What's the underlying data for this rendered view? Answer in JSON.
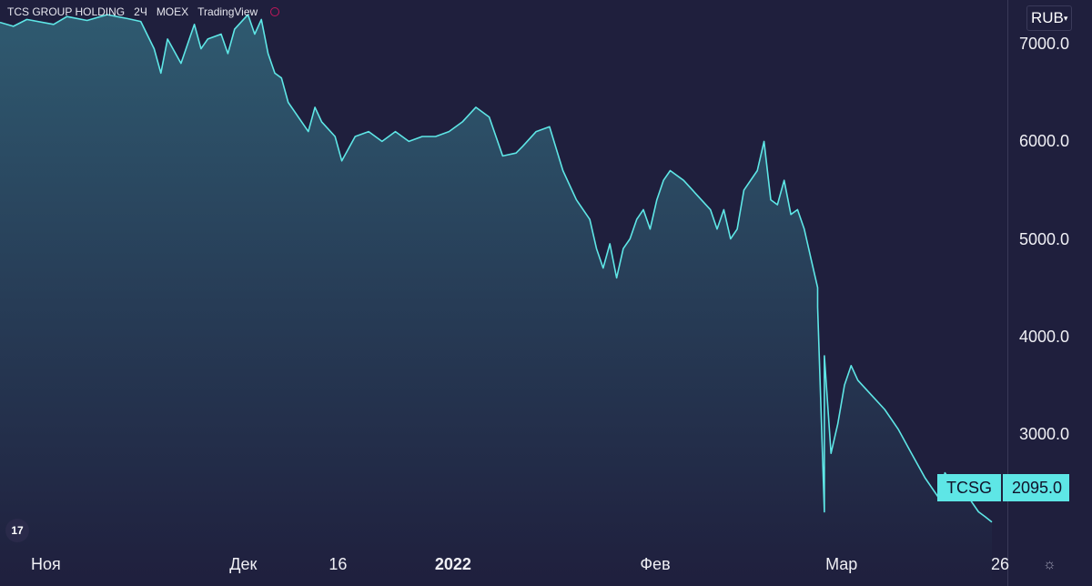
{
  "header": {
    "symbol": "TCS GROUP HOLDING",
    "interval": "2Ч",
    "exchange": "MOEX",
    "provider": "TradingView"
  },
  "currency": "RUB",
  "price_tag": {
    "symbol": "TCSG",
    "value": "2095.0"
  },
  "colors": {
    "line": "#5ee6e6",
    "background": "#1f1f3d",
    "fill_top": "#2f5a70"
  },
  "icons": {
    "logo": "tradingview-logo-icon",
    "settings": "settings-icon"
  },
  "chart_data": {
    "type": "area",
    "title": "",
    "xlabel": "",
    "ylabel": "",
    "ylim": [
      1850,
      7450
    ],
    "xlim": [
      "2021-11-01",
      "2022-03-26"
    ],
    "grid": false,
    "legend": "none",
    "y_ticks": [
      "7000.0",
      "6000.0",
      "5000.0",
      "4000.0",
      "3000.0"
    ],
    "y_tick_values": [
      7000,
      6000,
      5000,
      4000,
      3000
    ],
    "x_ticks": [
      {
        "label": "Ноя",
        "date": "2021-11-01",
        "bold": false
      },
      {
        "label": "Дек",
        "date": "2021-12-01",
        "bold": false
      },
      {
        "label": "16",
        "date": "2021-12-16",
        "bold": false
      },
      {
        "label": "2022",
        "date": "2022-01-01",
        "bold": true
      },
      {
        "label": "Фев",
        "date": "2022-02-01",
        "bold": false
      },
      {
        "label": "Мар",
        "date": "2022-03-01",
        "bold": false
      },
      {
        "label": "26",
        "date": "2022-03-26",
        "bold": false
      }
    ],
    "series": [
      {
        "x": [
          "2021-10-25",
          "2021-10-27",
          "2021-10-29",
          "2021-11-02",
          "2021-11-04",
          "2021-11-07",
          "2021-11-10",
          "2021-11-13",
          "2021-11-15",
          "2021-11-17",
          "2021-11-18",
          "2021-11-19",
          "2021-11-21",
          "2021-11-23",
          "2021-11-24",
          "2021-11-25",
          "2021-11-27",
          "2021-11-28",
          "2021-11-29",
          "2021-12-01",
          "2021-12-02",
          "2021-12-03",
          "2021-12-04",
          "2021-12-05",
          "2021-12-06",
          "2021-12-07",
          "2021-12-08",
          "2021-12-10",
          "2021-12-11",
          "2021-12-12",
          "2021-12-14",
          "2021-12-15",
          "2021-12-17",
          "2021-12-19",
          "2021-12-21",
          "2021-12-23",
          "2021-12-25",
          "2021-12-27",
          "2021-12-29",
          "2021-12-31",
          "2022-01-02",
          "2022-01-04",
          "2022-01-06",
          "2022-01-08",
          "2022-01-10",
          "2022-01-11",
          "2022-01-13",
          "2022-01-15",
          "2022-01-17",
          "2022-01-19",
          "2022-01-21",
          "2022-01-22",
          "2022-01-23",
          "2022-01-24",
          "2022-01-25",
          "2022-01-26",
          "2022-01-27",
          "2022-01-28",
          "2022-01-29",
          "2022-01-30",
          "2022-01-31",
          "2022-02-01",
          "2022-02-02",
          "2022-02-04",
          "2022-02-06",
          "2022-02-08",
          "2022-02-09",
          "2022-02-10",
          "2022-02-11",
          "2022-02-12",
          "2022-02-13",
          "2022-02-15",
          "2022-02-16",
          "2022-02-17",
          "2022-02-18",
          "2022-02-19",
          "2022-02-20",
          "2022-02-21",
          "2022-02-22",
          "2022-02-23",
          "2022-02-24",
          "2022-02-24",
          "2022-02-25",
          "2022-02-25",
          "2022-02-26",
          "2022-02-27",
          "2022-02-28",
          "2022-03-01",
          "2022-03-02",
          "2022-03-04",
          "2022-03-06",
          "2022-03-08",
          "2022-03-10",
          "2022-03-12",
          "2022-03-14",
          "2022-03-15",
          "2022-03-16",
          "2022-03-17",
          "2022-03-18",
          "2022-03-19",
          "2022-03-20",
          "2022-03-21",
          "2022-03-22"
        ],
        "values": [
          7220,
          7180,
          7250,
          7200,
          7280,
          7240,
          7300,
          7260,
          7230,
          6950,
          6700,
          7050,
          6800,
          7200,
          6950,
          7050,
          7100,
          6900,
          7150,
          7300,
          7100,
          7250,
          6900,
          6700,
          6650,
          6400,
          6300,
          6100,
          6350,
          6200,
          6050,
          5800,
          6050,
          6100,
          6000,
          6100,
          6000,
          6050,
          6050,
          6100,
          6200,
          6350,
          6250,
          5850,
          5880,
          5950,
          6100,
          6150,
          5700,
          5400,
          5200,
          4900,
          4700,
          4950,
          4600,
          4900,
          5000,
          5200,
          5300,
          5100,
          5400,
          5600,
          5700,
          5600,
          5450,
          5300,
          5100,
          5300,
          5000,
          5100,
          5500,
          5700,
          6000,
          5400,
          5350,
          5600,
          5250,
          5300,
          5100,
          4800,
          4500,
          4300,
          2200,
          3800,
          2800,
          3100,
          3500,
          3700,
          3550,
          3400,
          3250,
          3050,
          2800,
          2550,
          2350,
          2600,
          2500,
          2450,
          2420,
          2300,
          2200,
          2150,
          2095
        ]
      }
    ]
  }
}
